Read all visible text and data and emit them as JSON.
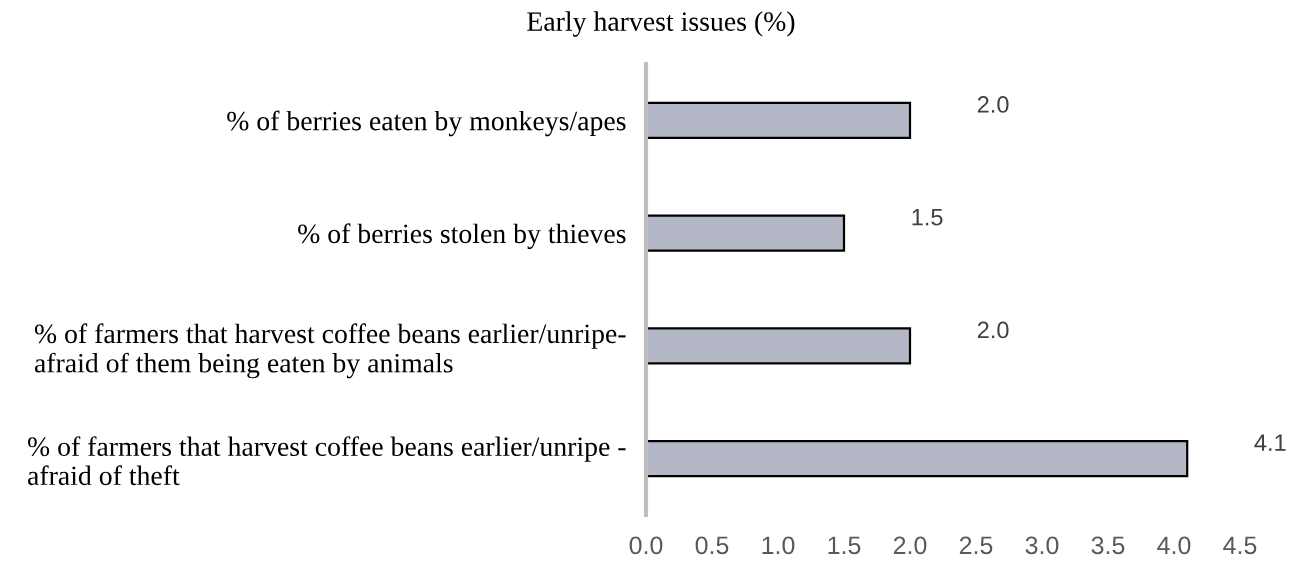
{
  "chart_data": {
    "type": "bar",
    "orientation": "horizontal",
    "title": "Early harvest issues (%)",
    "categories": [
      "% of berries eaten by monkeys/apes",
      "% of berries stolen by thieves",
      "% of farmers that harvest coffee beans earlier/unripe-\nafraid of them being eaten by animals",
      "% of farmers that harvest coffee beans earlier/unripe -\nafraid of theft"
    ],
    "values": [
      2.0,
      1.5,
      2.0,
      4.1
    ],
    "value_labels": [
      "2.0",
      "1.5",
      "2.0",
      "4.1"
    ],
    "color": "#b4b8c6",
    "xlim": [
      0,
      4.5
    ],
    "xticks": [
      {
        "value": 0,
        "label": "0.0"
      },
      0.5,
      {
        "value": 1,
        "label": "1.0"
      },
      1.5,
      {
        "value": 2,
        "label": "2.0"
      },
      2.5,
      {
        "value": 3,
        "label": "3.0"
      },
      3.5,
      {
        "value": 4,
        "label": "4.0"
      },
      4.5
    ],
    "grid": false
  }
}
